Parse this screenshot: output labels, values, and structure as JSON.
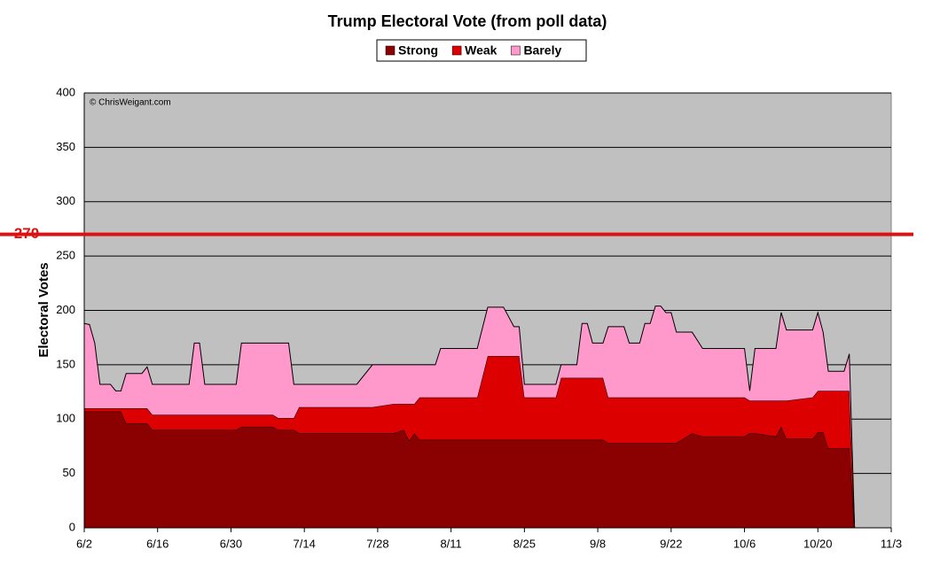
{
  "chart_data": {
    "type": "stacked_area",
    "title": "Trump Electoral Vote (from poll data)",
    "y_label": "Electoral Votes",
    "annotation": "© ChrisWeigant.com",
    "threshold": 270,
    "threshold_color": "#dd1111",
    "background": "#c0c0c0",
    "grid": true,
    "legend": "top",
    "x": [
      "6/2",
      "6/3",
      "6/4",
      "6/5",
      "6/7",
      "6/8",
      "6/9",
      "6/10",
      "6/13",
      "6/14",
      "6/15",
      "6/22",
      "6/23",
      "6/24",
      "6/25",
      "7/1",
      "7/2",
      "7/8",
      "7/9",
      "7/11",
      "7/12",
      "7/13",
      "7/24",
      "7/27",
      "7/31",
      "8/2",
      "8/3",
      "8/4",
      "8/5",
      "8/8",
      "8/9",
      "8/16",
      "8/18",
      "8/21",
      "8/23",
      "8/24",
      "8/25",
      "8/31",
      "9/1",
      "9/4",
      "9/5",
      "9/6",
      "9/7",
      "9/9",
      "9/10",
      "9/13",
      "9/14",
      "9/16",
      "9/17",
      "9/18",
      "9/19",
      "9/20",
      "9/21",
      "9/22",
      "9/23",
      "9/26",
      "9/28",
      "10/6",
      "10/7",
      "10/8",
      "10/12",
      "10/13",
      "10/14",
      "10/19",
      "10/20",
      "10/21",
      "10/22",
      "10/25",
      "10/26",
      "10/27"
    ],
    "series": [
      {
        "name": "Strong",
        "color": "#8b0000",
        "values": [
          107,
          107,
          107,
          107,
          107,
          107,
          107,
          96,
          96,
          96,
          90,
          90,
          90,
          90,
          90,
          90,
          93,
          93,
          90,
          90,
          90,
          87,
          87,
          87,
          87,
          90,
          80,
          87,
          81,
          81,
          81,
          81,
          81,
          81,
          81,
          81,
          81,
          81,
          81,
          81,
          81,
          81,
          81,
          81,
          78,
          78,
          78,
          78,
          78,
          78,
          78,
          78,
          78,
          78,
          78,
          87,
          84,
          84,
          87,
          87,
          84,
          93,
          82,
          82,
          88,
          88,
          73,
          73,
          73,
          0
        ]
      },
      {
        "name": "Weak",
        "color": "#dd0000",
        "values": [
          3,
          3,
          3,
          3,
          3,
          3,
          3,
          14,
          14,
          14,
          14,
          14,
          14,
          14,
          14,
          14,
          11,
          11,
          11,
          11,
          11,
          24,
          24,
          24,
          27,
          24,
          34,
          27,
          39,
          39,
          39,
          39,
          77,
          77,
          77,
          77,
          39,
          39,
          57,
          57,
          57,
          57,
          57,
          57,
          42,
          42,
          42,
          42,
          42,
          42,
          42,
          42,
          42,
          42,
          42,
          33,
          36,
          36,
          30,
          30,
          33,
          24,
          35,
          38,
          38,
          38,
          53,
          53,
          53,
          0
        ]
      },
      {
        "name": "Barely",
        "color": "#ff99cc",
        "values": [
          78,
          77,
          60,
          22,
          22,
          16,
          16,
          32,
          32,
          38,
          28,
          28,
          66,
          66,
          28,
          28,
          66,
          66,
          69,
          69,
          31,
          21,
          21,
          39,
          36,
          36,
          36,
          36,
          30,
          30,
          45,
          45,
          45,
          45,
          27,
          27,
          12,
          12,
          12,
          12,
          50,
          50,
          32,
          32,
          65,
          65,
          50,
          50,
          68,
          68,
          84,
          84,
          78,
          78,
          60,
          60,
          45,
          45,
          9,
          48,
          48,
          81,
          65,
          62,
          72,
          54,
          18,
          18,
          34,
          0
        ]
      }
    ],
    "xlim": [
      "6/2",
      "11/3"
    ],
    "xticks": [
      "6/2",
      "6/16",
      "6/30",
      "7/14",
      "7/28",
      "8/11",
      "8/25",
      "9/8",
      "9/22",
      "10/6",
      "10/20",
      "11/3"
    ],
    "ylim": [
      0,
      400
    ],
    "yticks": [
      0,
      50,
      100,
      150,
      200,
      250,
      300,
      350,
      400
    ]
  }
}
